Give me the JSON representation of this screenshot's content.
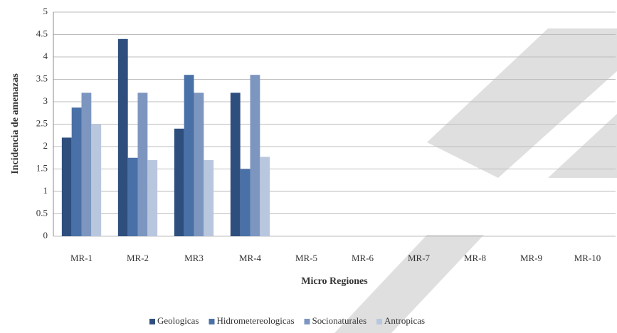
{
  "chart_data": {
    "type": "bar",
    "xlabel": "Micro Regiones",
    "ylabel": "Incidencia de amenazas",
    "categories": [
      "MR-1",
      "MR-2",
      "MR3",
      "MR-4",
      "MR-5",
      "MR-6",
      "MR-7",
      "MR-8",
      "MR-9",
      "MR-10"
    ],
    "series": [
      {
        "name": "Geologicas",
        "color": "#2e4e7e",
        "values": [
          2.2,
          4.4,
          2.4,
          3.2,
          null,
          null,
          null,
          null,
          null,
          null
        ]
      },
      {
        "name": "Hidrometereologicas",
        "color": "#4a70a8",
        "values": [
          2.87,
          1.75,
          3.6,
          1.5,
          null,
          null,
          null,
          null,
          null,
          null
        ]
      },
      {
        "name": "Socionaturales",
        "color": "#7d96c0",
        "values": [
          3.2,
          3.2,
          3.2,
          3.6,
          null,
          null,
          null,
          null,
          null,
          null
        ]
      },
      {
        "name": "Antropicas",
        "color": "#b9c7de",
        "values": [
          2.5,
          1.7,
          1.7,
          1.77,
          null,
          null,
          null,
          null,
          null,
          null
        ]
      }
    ],
    "ylim": [
      0,
      5
    ],
    "yticks": [
      0,
      0.5,
      1,
      1.5,
      2,
      2.5,
      3,
      3.5,
      4,
      4.5,
      5
    ],
    "grid": true,
    "legend": "bottom"
  }
}
